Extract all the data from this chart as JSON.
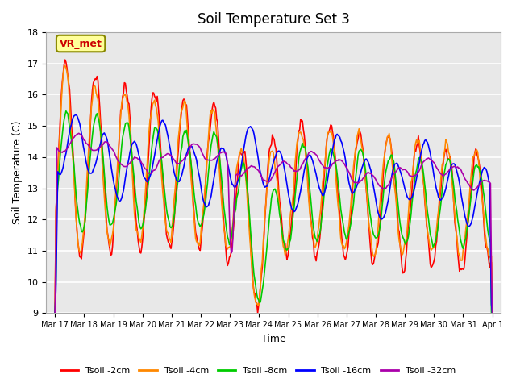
{
  "title": "Soil Temperature Set 3",
  "xlabel": "Time",
  "ylabel": "Soil Temperature (C)",
  "ylim": [
    9.0,
    18.0
  ],
  "yticks": [
    9.0,
    10.0,
    11.0,
    12.0,
    13.0,
    14.0,
    15.0,
    16.0,
    17.0,
    18.0
  ],
  "xtick_labels": [
    "Mar 17",
    "Mar 18",
    "Mar 19",
    "Mar 20",
    "Mar 21",
    "Mar 22",
    "Mar 23",
    "Mar 24",
    "Mar 25",
    "Mar 26",
    "Mar 27",
    "Mar 28",
    "Mar 29",
    "Mar 30",
    "Mar 31",
    "Apr 1"
  ],
  "xtick_positions": [
    0,
    1,
    2,
    3,
    4,
    5,
    6,
    7,
    8,
    9,
    10,
    11,
    12,
    13,
    14,
    15
  ],
  "legend_labels": [
    "Tsoil -2cm",
    "Tsoil -4cm",
    "Tsoil -8cm",
    "Tsoil -16cm",
    "Tsoil -32cm"
  ],
  "legend_colors": [
    "#ff0000",
    "#ff8800",
    "#00cc00",
    "#0000ff",
    "#aa00aa"
  ],
  "line_colors": [
    "#ff0000",
    "#ff8800",
    "#00cc00",
    "#0000ff",
    "#aa00aa"
  ],
  "annotation_text": "VR_met",
  "annotation_color": "#cc0000",
  "annotation_box_facecolor": "#ffff99",
  "annotation_box_edgecolor": "#888800",
  "plot_bg_color": "#e8e8e8",
  "n_points": 480
}
